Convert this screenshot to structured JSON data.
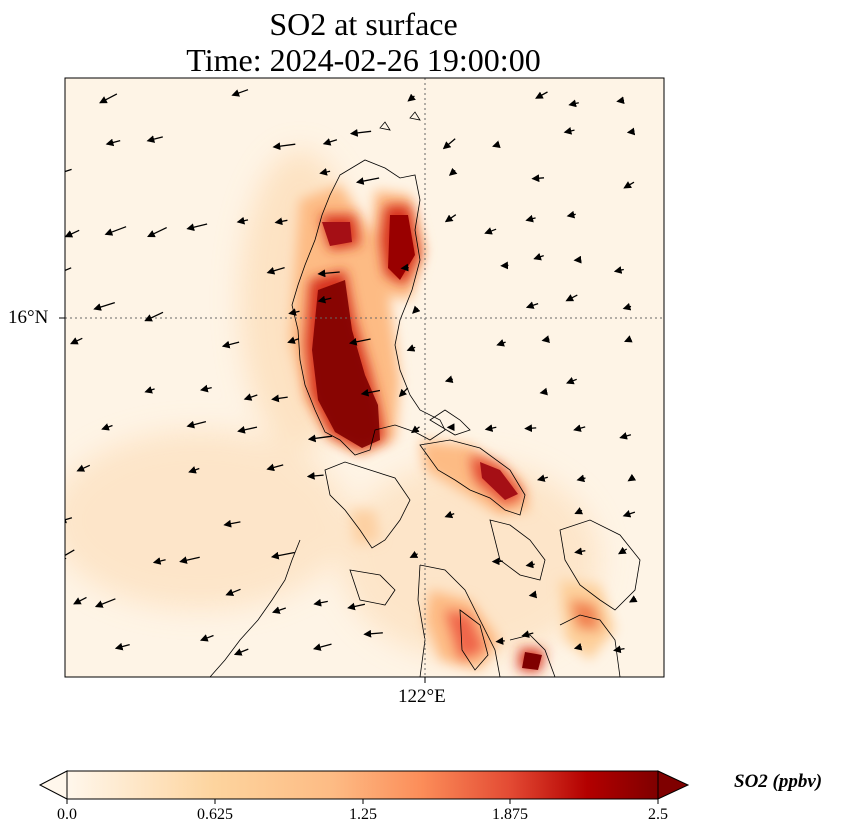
{
  "title": {
    "line1": "SO2 at surface",
    "line2": "Time: 2024-02-26 19:00:00"
  },
  "axes": {
    "lat_label": "16°N",
    "lon_label": "122°E"
  },
  "colorbar": {
    "label": "SO2 (ppbv)",
    "ticks": [
      "0.0",
      "0.625",
      "1.25",
      "1.875",
      "2.5"
    ],
    "min": 0,
    "max": 2.5,
    "colormap": "OrRd",
    "extend": "both"
  },
  "colors": {
    "low": "#fff7ec",
    "mid": "#fc8d59",
    "high": "#7f0000"
  },
  "map": {
    "gridline_style": "dotted",
    "wind_vectors": "shown"
  }
}
